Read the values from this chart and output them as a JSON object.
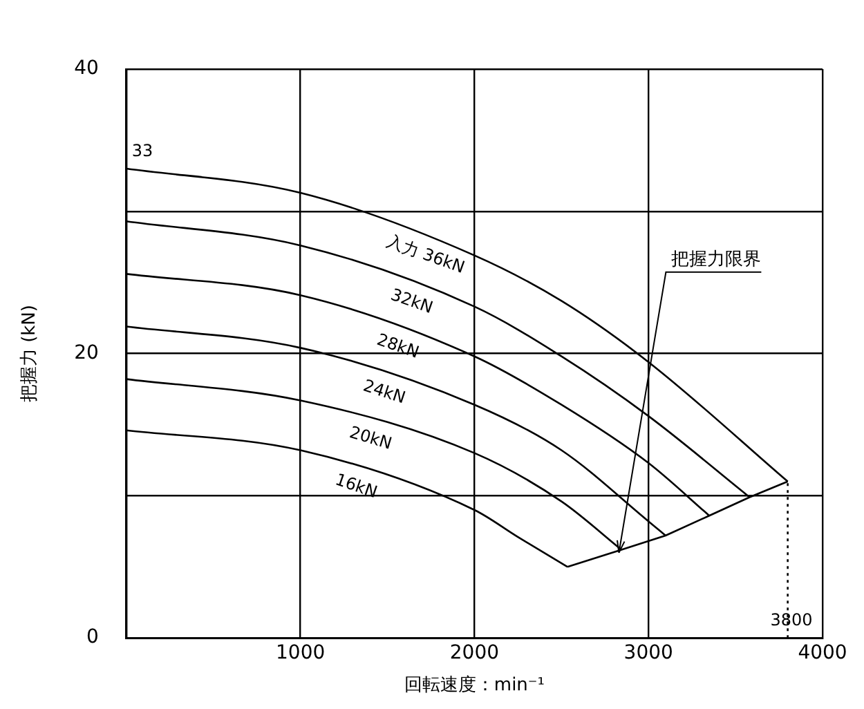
{
  "chart_data": {
    "type": "line",
    "xlabel": "回転速度：min⁻¹",
    "ylabel": "把握力 (kN)",
    "xlim": [
      0,
      4000
    ],
    "xticks": [
      {
        "value": 0,
        "label": null
      },
      1000,
      2000,
      3000,
      4000
    ],
    "ylim": [
      0,
      40
    ],
    "yticks": [
      0,
      {
        "value": 10,
        "label": null
      },
      20,
      {
        "value": 30,
        "label": null
      },
      40
    ],
    "grid": true,
    "marker": "none",
    "line_style": "solid",
    "series": [
      {
        "name": "入力 36kN",
        "color": "#000000",
        "x": [
          0,
          1000,
          2000,
          2500,
          3000,
          3800
        ],
        "values": [
          33,
          31.3,
          26.9,
          23.7,
          19.4,
          11.0
        ]
      },
      {
        "name": "32kN",
        "color": "#000000",
        "x": [
          0,
          1000,
          2000,
          2500,
          3000,
          3581
        ],
        "values": [
          29.3,
          27.6,
          23.3,
          19.8,
          15.6,
          9.9
        ]
      },
      {
        "name": "28kN",
        "color": "#000000",
        "x": [
          0,
          1000,
          2000,
          2500,
          3000,
          3349
        ],
        "values": [
          25.6,
          24.1,
          19.8,
          16.4,
          12.3,
          8.6
        ]
      },
      {
        "name": "24kN",
        "color": "#000000",
        "x": [
          0,
          1000,
          2000,
          2500,
          3000,
          3098
        ],
        "values": [
          21.9,
          20.4,
          16.4,
          13.2,
          8.2,
          7.2
        ]
      },
      {
        "name": "20kN",
        "color": "#000000",
        "x": [
          0,
          1000,
          2000,
          2500,
          2845
        ],
        "values": [
          18.2,
          16.7,
          13.0,
          9.6,
          6.2
        ]
      },
      {
        "name": "16kN",
        "color": "#000000",
        "x": [
          0,
          1000,
          2000,
          2250,
          2535
        ],
        "values": [
          14.6,
          13.2,
          9.0,
          7.1,
          5.0
        ]
      },
      {
        "color": "#000000",
        "x": [
          2535,
          2845,
          3098,
          3349,
          3581,
          3800
        ],
        "values": [
          5.0,
          6.2,
          7.2,
          8.6,
          9.9,
          11.0
        ]
      },
      {
        "color": "#000000",
        "line_style": "dotted",
        "x": [
          3800,
          3800
        ],
        "values": [
          0,
          11.0
        ]
      }
    ],
    "annotations": [
      {
        "text": "33",
        "x": 0,
        "y": 33
      },
      {
        "text": "3800",
        "x": 3800,
        "y": 0
      },
      {
        "text": "把握力限界",
        "x": 2830,
        "y": 6.0
      }
    ]
  }
}
